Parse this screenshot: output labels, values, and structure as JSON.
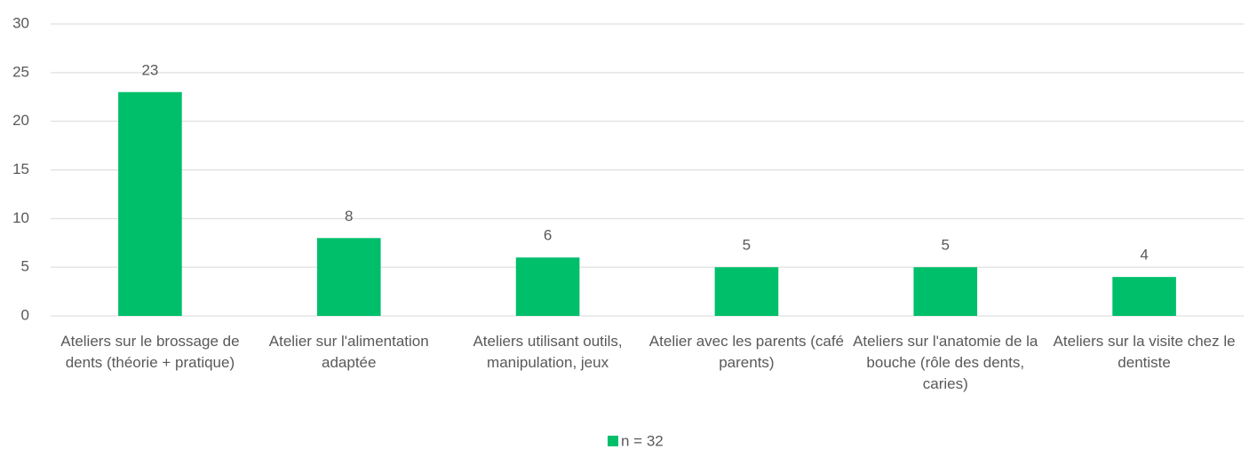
{
  "chart_data": {
    "type": "bar",
    "categories": [
      "Ateliers sur le brossage de dents (théorie + pratique)",
      "Atelier sur l'alimentation adaptée",
      "Ateliers utilisant outils, manipulation, jeux",
      "Atelier avec les parents (café parents)",
      "Ateliers sur l'anatomie de la bouche (rôle des dents, caries)",
      "Ateliers sur la visite chez le dentiste"
    ],
    "series": [
      {
        "name": "n = 32",
        "color": "#00bf6b",
        "values": [
          23,
          8,
          6,
          5,
          5,
          4
        ]
      }
    ],
    "ylim": [
      0,
      30
    ],
    "yticks": [
      0,
      5,
      10,
      15,
      20,
      25,
      30
    ],
    "grid": true,
    "legend": "bottom"
  }
}
